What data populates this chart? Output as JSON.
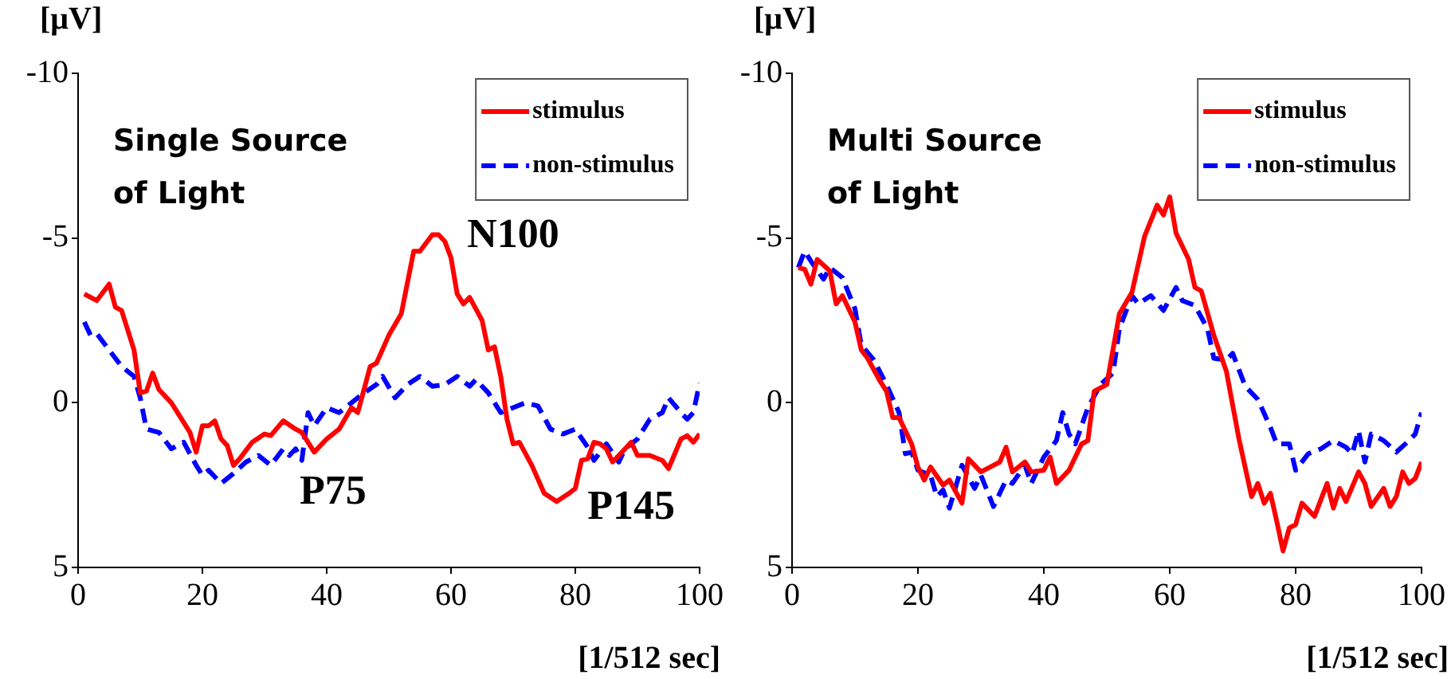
{
  "chart_data": [
    {
      "type": "line",
      "title": "Single Source of Light",
      "xlabel": "[1/512 sec]",
      "ylabel": "[μV]",
      "xlim": [
        0,
        100
      ],
      "xticks": [
        0,
        20,
        40,
        60,
        80,
        100
      ],
      "ylim": [
        5,
        -10
      ],
      "yticks": [
        -10,
        -5,
        0,
        5
      ],
      "grid": false,
      "legend": "top right",
      "marker": "none",
      "annotations": [
        "N100",
        "P75",
        "P145"
      ],
      "series": [
        {
          "name": "stimulus",
          "color": "#ff0000",
          "line_style": "solid",
          "x": [
            1,
            3,
            5,
            6,
            7,
            9,
            10,
            11,
            12,
            13,
            15,
            17,
            18,
            19,
            20,
            21,
            22,
            23,
            24,
            25,
            26,
            28,
            30,
            31,
            33,
            35,
            36,
            38,
            40,
            42,
            44,
            45,
            47,
            48,
            50,
            52,
            54,
            55,
            57,
            58,
            59,
            60,
            61,
            62,
            63,
            65,
            66,
            67,
            68,
            69,
            70,
            71,
            73,
            75,
            77,
            79,
            80,
            81,
            82,
            83,
            84,
            85,
            86,
            87,
            89,
            90,
            92,
            94,
            95,
            97,
            98,
            99,
            100
          ],
          "values": [
            -3.3,
            -3.1,
            -3.6,
            -2.9,
            -2.8,
            -1.6,
            -0.3,
            -0.35,
            -0.9,
            -0.4,
            0,
            0.6,
            0.9,
            1.5,
            0.7,
            0.7,
            0.55,
            1.1,
            1.3,
            1.9,
            1.7,
            1.2,
            0.95,
            1,
            0.55,
            0.8,
            0.9,
            1.5,
            1.1,
            0.8,
            0.15,
            0.3,
            -1.1,
            -1.2,
            -2.05,
            -2.7,
            -4.6,
            -4.6,
            -5.1,
            -5.1,
            -4.9,
            -4.4,
            -3.3,
            -3,
            -3.2,
            -2.5,
            -1.6,
            -1.7,
            -0.8,
            0.5,
            1.25,
            1.2,
            1.9,
            2.75,
            3,
            2.75,
            2.6,
            1.75,
            1.7,
            1.2,
            1.25,
            1.4,
            1.8,
            1.6,
            1.2,
            1.6,
            1.6,
            1.75,
            2,
            1.1,
            1,
            1.2,
            0.95
          ]
        },
        {
          "name": "non-stimulus",
          "color": "#0000ff",
          "line_style": "dashed",
          "x": [
            1,
            2,
            3,
            5,
            7,
            9,
            10,
            11,
            13,
            15,
            17,
            19,
            20,
            21,
            23,
            25,
            27,
            29,
            31,
            33,
            34,
            35,
            36,
            37,
            38,
            40,
            42,
            44,
            46,
            48,
            49,
            51,
            53,
            55,
            57,
            59,
            61,
            63,
            64,
            66,
            68,
            70,
            72,
            74,
            76,
            78,
            80,
            82,
            83,
            85,
            87,
            88,
            90,
            92,
            94,
            95,
            97,
            98,
            99,
            100
          ],
          "values": [
            -2.45,
            -2.05,
            -2.1,
            -1.6,
            -1.1,
            -0.8,
            -0.15,
            0.8,
            0.9,
            1.4,
            1.2,
            1.9,
            2.2,
            2.05,
            2.45,
            2.15,
            1.8,
            1.6,
            1.9,
            1.4,
            1.6,
            1.4,
            1.75,
            0.3,
            0.7,
            0.15,
            0.3,
            0,
            -0.3,
            -0.55,
            -0.8,
            -0.15,
            -0.55,
            -0.8,
            -0.5,
            -0.55,
            -0.8,
            -0.5,
            -0.7,
            -0.3,
            0.3,
            0.15,
            0,
            0.1,
            0.8,
            0.95,
            0.8,
            1.35,
            1.75,
            1.25,
            1.8,
            1.4,
            1.1,
            0.5,
            0.3,
            -0.15,
            0.3,
            0.5,
            0.3,
            -0.6
          ]
        }
      ]
    },
    {
      "type": "line",
      "title": "Multi Source of Light",
      "xlabel": "[1/512 sec]",
      "ylabel": "[μV]",
      "xlim": [
        0,
        100
      ],
      "xticks": [
        0,
        20,
        40,
        60,
        80,
        100
      ],
      "ylim": [
        5,
        -10
      ],
      "yticks": [
        -10,
        -5,
        0,
        5
      ],
      "grid": false,
      "legend": "top right",
      "marker": "none",
      "series": [
        {
          "name": "stimulus",
          "color": "#ff0000",
          "line_style": "solid",
          "x": [
            1,
            2,
            3,
            4,
            6,
            7,
            8,
            10,
            11,
            12,
            14,
            15,
            16,
            17,
            19,
            20,
            21,
            22,
            24,
            25,
            27,
            28,
            30,
            32,
            33,
            34,
            35,
            37,
            38,
            40,
            41,
            42,
            44,
            46,
            47,
            48,
            50,
            52,
            54,
            56,
            58,
            59,
            60,
            61,
            63,
            64,
            65,
            67,
            69,
            71,
            73,
            74,
            75,
            76,
            77,
            78,
            79,
            80,
            81,
            83,
            85,
            86,
            87,
            88,
            90,
            91,
            92,
            94,
            95,
            96,
            97,
            98,
            99,
            100
          ],
          "values": [
            -4.1,
            -4.05,
            -3.6,
            -4.35,
            -4,
            -3,
            -3.25,
            -2.45,
            -1.6,
            -1.35,
            -0.65,
            -0.35,
            0.45,
            0.45,
            1.25,
            1.95,
            2.35,
            1.95,
            2.5,
            2.35,
            3.05,
            1.7,
            2.1,
            1.9,
            1.8,
            1.35,
            2.1,
            1.8,
            2.1,
            2.05,
            1.65,
            2.45,
            2.05,
            1.25,
            1.15,
            -0.35,
            -0.55,
            -2.7,
            -3.35,
            -5.05,
            -6,
            -5.7,
            -6.25,
            -5.15,
            -4.35,
            -3.5,
            -3.4,
            -2.05,
            -0.95,
            1.1,
            2.85,
            2.45,
            3.05,
            2.75,
            3.6,
            4.5,
            3.8,
            3.7,
            3.05,
            3.45,
            2.45,
            3.2,
            2.6,
            3,
            2.1,
            2.45,
            3.15,
            2.6,
            3.15,
            2.85,
            2.1,
            2.45,
            2.3,
            1.8
          ]
        },
        {
          "name": "non-stimulus",
          "color": "#0000ff",
          "line_style": "dashed",
          "x": [
            1,
            2,
            3,
            5,
            6,
            8,
            10,
            11,
            13,
            15,
            17,
            18,
            19,
            20,
            22,
            23,
            24,
            25,
            27,
            29,
            30,
            32,
            34,
            35,
            37,
            38,
            40,
            42,
            43,
            44,
            45,
            47,
            49,
            51,
            52,
            54,
            55,
            57,
            59,
            61,
            62,
            64,
            66,
            67,
            69,
            70,
            72,
            74,
            76,
            77,
            79,
            80,
            82,
            84,
            86,
            88,
            89,
            90,
            91,
            92,
            94,
            96,
            98,
            99,
            100
          ],
          "values": [
            -4.1,
            -4.6,
            -4.3,
            -3.75,
            -4.1,
            -3.8,
            -2.85,
            -1.75,
            -1.3,
            -0.55,
            0.3,
            1.55,
            1.5,
            2.05,
            2.2,
            2.85,
            2.65,
            3.2,
            1.9,
            2.6,
            2.2,
            3.15,
            2.35,
            2.45,
            1.9,
            2.45,
            1.65,
            1.15,
            0.3,
            0.95,
            1.25,
            0.15,
            -0.55,
            -0.9,
            -2.25,
            -3.25,
            -3,
            -3.25,
            -2.8,
            -3.5,
            -3.1,
            -2.95,
            -2.25,
            -1.35,
            -1.3,
            -1.5,
            -0.5,
            -0.1,
            0.75,
            1.25,
            1.25,
            2.05,
            1.55,
            1.4,
            1.15,
            1.35,
            1.55,
            0.85,
            1.8,
            0.95,
            1.15,
            1.5,
            1.15,
            0.95,
            0.3
          ]
        }
      ]
    }
  ]
}
